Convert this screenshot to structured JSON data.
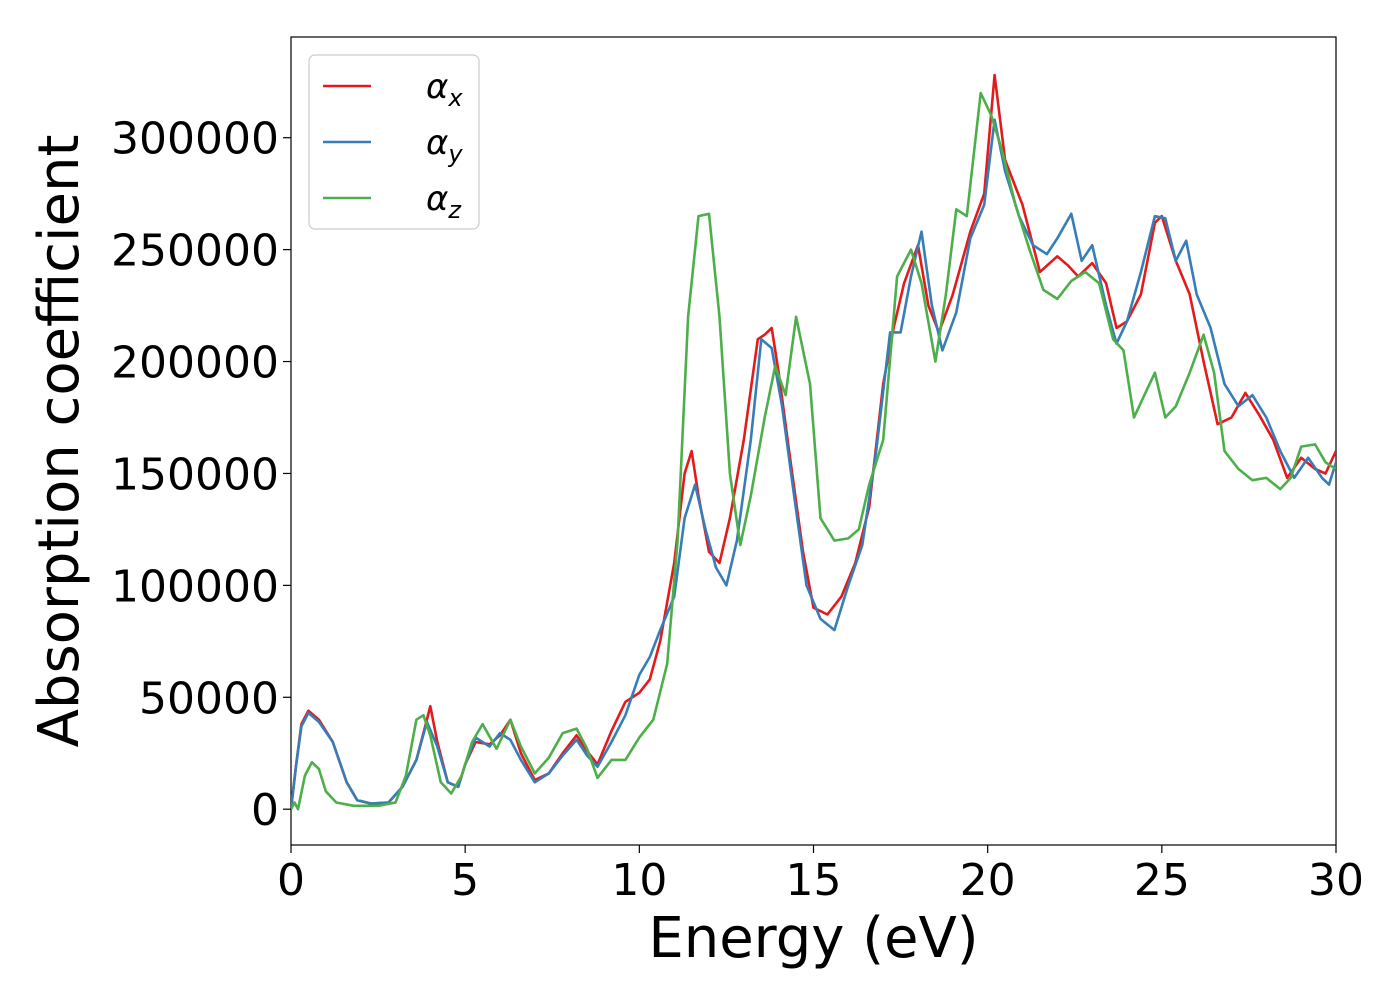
{
  "chart_data": {
    "type": "line",
    "title": "",
    "xlabel": "Energy (eV)",
    "ylabel": "Absorption coefficient",
    "xlim": [
      0,
      30
    ],
    "ylim": [
      -16000,
      345000
    ],
    "xticks": [
      0,
      5,
      10,
      15,
      20,
      25,
      30
    ],
    "xtick_labels": [
      "0",
      "5",
      "10",
      "15",
      "20",
      "25",
      "30"
    ],
    "yticks": [
      0,
      50000,
      100000,
      150000,
      200000,
      250000,
      300000
    ],
    "ytick_labels": [
      "0",
      "50000",
      "100000",
      "150000",
      "200000",
      "250000",
      "300000"
    ],
    "grid": false,
    "legend_position": "top-left",
    "series": [
      {
        "name": "α",
        "subscript": "x",
        "color": "#e41a1c",
        "points": [
          [
            0,
            0
          ],
          [
            0.15,
            20000
          ],
          [
            0.3,
            38000
          ],
          [
            0.5,
            44000
          ],
          [
            0.8,
            40000
          ],
          [
            1.2,
            30000
          ],
          [
            1.6,
            12000
          ],
          [
            1.9,
            4000
          ],
          [
            2.3,
            2500
          ],
          [
            2.8,
            3000
          ],
          [
            3.2,
            10000
          ],
          [
            3.6,
            22000
          ],
          [
            3.9,
            40000
          ],
          [
            4.0,
            46000
          ],
          [
            4.2,
            30000
          ],
          [
            4.5,
            12000
          ],
          [
            4.8,
            10000
          ],
          [
            5.0,
            20000
          ],
          [
            5.3,
            30000
          ],
          [
            5.7,
            29000
          ],
          [
            6.0,
            33000
          ],
          [
            6.3,
            40000
          ],
          [
            6.6,
            25000
          ],
          [
            7.0,
            13000
          ],
          [
            7.4,
            16000
          ],
          [
            7.8,
            25000
          ],
          [
            8.2,
            33000
          ],
          [
            8.5,
            26000
          ],
          [
            8.8,
            20000
          ],
          [
            9.2,
            35000
          ],
          [
            9.6,
            48000
          ],
          [
            10.0,
            52000
          ],
          [
            10.3,
            58000
          ],
          [
            10.6,
            75000
          ],
          [
            11.0,
            110000
          ],
          [
            11.3,
            150000
          ],
          [
            11.5,
            160000
          ],
          [
            11.7,
            140000
          ],
          [
            12.0,
            115000
          ],
          [
            12.3,
            110000
          ],
          [
            12.6,
            130000
          ],
          [
            13.0,
            165000
          ],
          [
            13.4,
            210000
          ],
          [
            13.6,
            212000
          ],
          [
            13.8,
            215000
          ],
          [
            14.0,
            195000
          ],
          [
            14.3,
            160000
          ],
          [
            14.7,
            115000
          ],
          [
            15.0,
            90000
          ],
          [
            15.4,
            87000
          ],
          [
            15.8,
            95000
          ],
          [
            16.2,
            110000
          ],
          [
            16.6,
            135000
          ],
          [
            17.0,
            190000
          ],
          [
            17.3,
            215000
          ],
          [
            17.6,
            235000
          ],
          [
            18.0,
            252000
          ],
          [
            18.3,
            225000
          ],
          [
            18.6,
            213000
          ],
          [
            19.0,
            230000
          ],
          [
            19.5,
            258000
          ],
          [
            19.9,
            275000
          ],
          [
            20.2,
            328000
          ],
          [
            20.5,
            290000
          ],
          [
            21.0,
            270000
          ],
          [
            21.5,
            240000
          ],
          [
            22.0,
            247000
          ],
          [
            22.3,
            243000
          ],
          [
            22.6,
            238000
          ],
          [
            23.0,
            244000
          ],
          [
            23.4,
            235000
          ],
          [
            23.7,
            215000
          ],
          [
            24.0,
            218000
          ],
          [
            24.4,
            230000
          ],
          [
            24.8,
            262000
          ],
          [
            25.0,
            265000
          ],
          [
            25.4,
            245000
          ],
          [
            25.8,
            230000
          ],
          [
            26.2,
            200000
          ],
          [
            26.6,
            172000
          ],
          [
            27.0,
            175000
          ],
          [
            27.4,
            186000
          ],
          [
            27.8,
            176000
          ],
          [
            28.2,
            165000
          ],
          [
            28.6,
            148000
          ],
          [
            29.0,
            157000
          ],
          [
            29.4,
            152000
          ],
          [
            29.7,
            150000
          ],
          [
            30.0,
            160000
          ]
        ]
      },
      {
        "name": "α",
        "subscript": "y",
        "color": "#377eb8",
        "points": [
          [
            0,
            0
          ],
          [
            0.15,
            20000
          ],
          [
            0.3,
            37000
          ],
          [
            0.5,
            43000
          ],
          [
            0.8,
            39000
          ],
          [
            1.2,
            30000
          ],
          [
            1.6,
            12000
          ],
          [
            1.9,
            4000
          ],
          [
            2.3,
            2500
          ],
          [
            2.8,
            3000
          ],
          [
            3.2,
            10000
          ],
          [
            3.6,
            22000
          ],
          [
            3.9,
            39000
          ],
          [
            4.2,
            28000
          ],
          [
            4.5,
            12000
          ],
          [
            4.8,
            10000
          ],
          [
            5.0,
            20000
          ],
          [
            5.3,
            32000
          ],
          [
            5.7,
            28000
          ],
          [
            6.0,
            34000
          ],
          [
            6.3,
            31000
          ],
          [
            6.6,
            22000
          ],
          [
            7.0,
            12000
          ],
          [
            7.4,
            16000
          ],
          [
            7.8,
            24000
          ],
          [
            8.2,
            31000
          ],
          [
            8.5,
            24000
          ],
          [
            8.8,
            19000
          ],
          [
            9.2,
            30000
          ],
          [
            9.6,
            42000
          ],
          [
            10.0,
            60000
          ],
          [
            10.3,
            68000
          ],
          [
            10.6,
            80000
          ],
          [
            11.0,
            95000
          ],
          [
            11.3,
            130000
          ],
          [
            11.6,
            145000
          ],
          [
            11.9,
            125000
          ],
          [
            12.2,
            108000
          ],
          [
            12.5,
            100000
          ],
          [
            12.8,
            120000
          ],
          [
            13.2,
            165000
          ],
          [
            13.5,
            210000
          ],
          [
            13.8,
            206000
          ],
          [
            14.1,
            180000
          ],
          [
            14.4,
            145000
          ],
          [
            14.8,
            100000
          ],
          [
            15.2,
            85000
          ],
          [
            15.6,
            80000
          ],
          [
            16.0,
            100000
          ],
          [
            16.4,
            118000
          ],
          [
            16.8,
            160000
          ],
          [
            17.2,
            213000
          ],
          [
            17.5,
            213000
          ],
          [
            17.8,
            238000
          ],
          [
            18.1,
            258000
          ],
          [
            18.4,
            225000
          ],
          [
            18.7,
            205000
          ],
          [
            19.1,
            222000
          ],
          [
            19.5,
            255000
          ],
          [
            19.9,
            270000
          ],
          [
            20.2,
            308000
          ],
          [
            20.5,
            285000
          ],
          [
            20.9,
            265000
          ],
          [
            21.3,
            252000
          ],
          [
            21.7,
            248000
          ],
          [
            22.0,
            255000
          ],
          [
            22.4,
            266000
          ],
          [
            22.7,
            245000
          ],
          [
            23.0,
            252000
          ],
          [
            23.4,
            225000
          ],
          [
            23.7,
            208000
          ],
          [
            24.0,
            218000
          ],
          [
            24.4,
            240000
          ],
          [
            24.8,
            265000
          ],
          [
            25.1,
            264000
          ],
          [
            25.4,
            245000
          ],
          [
            25.7,
            254000
          ],
          [
            26.0,
            230000
          ],
          [
            26.4,
            215000
          ],
          [
            26.8,
            190000
          ],
          [
            27.2,
            180000
          ],
          [
            27.6,
            185000
          ],
          [
            28.0,
            175000
          ],
          [
            28.4,
            160000
          ],
          [
            28.8,
            148000
          ],
          [
            29.2,
            157000
          ],
          [
            29.6,
            148000
          ],
          [
            29.8,
            145000
          ],
          [
            30.0,
            155000
          ]
        ]
      },
      {
        "name": "α",
        "subscript": "z",
        "color": "#4daf4a",
        "points": [
          [
            0,
            0
          ],
          [
            0.1,
            3000
          ],
          [
            0.2,
            0
          ],
          [
            0.4,
            15000
          ],
          [
            0.6,
            21000
          ],
          [
            0.8,
            18000
          ],
          [
            1.0,
            8000
          ],
          [
            1.3,
            3000
          ],
          [
            1.8,
            1500
          ],
          [
            2.5,
            1500
          ],
          [
            3.0,
            3000
          ],
          [
            3.3,
            15000
          ],
          [
            3.6,
            40000
          ],
          [
            3.8,
            42000
          ],
          [
            4.0,
            33000
          ],
          [
            4.3,
            12000
          ],
          [
            4.6,
            7000
          ],
          [
            4.9,
            15000
          ],
          [
            5.2,
            30000
          ],
          [
            5.5,
            38000
          ],
          [
            5.9,
            27000
          ],
          [
            6.3,
            40000
          ],
          [
            6.6,
            28000
          ],
          [
            7.0,
            16000
          ],
          [
            7.4,
            23000
          ],
          [
            7.8,
            34000
          ],
          [
            8.2,
            36000
          ],
          [
            8.5,
            27000
          ],
          [
            8.8,
            14000
          ],
          [
            9.2,
            22000
          ],
          [
            9.6,
            22000
          ],
          [
            10.0,
            32000
          ],
          [
            10.4,
            40000
          ],
          [
            10.8,
            65000
          ],
          [
            11.1,
            120000
          ],
          [
            11.4,
            220000
          ],
          [
            11.7,
            265000
          ],
          [
            12.0,
            266000
          ],
          [
            12.3,
            220000
          ],
          [
            12.6,
            150000
          ],
          [
            12.9,
            118000
          ],
          [
            13.2,
            140000
          ],
          [
            13.6,
            175000
          ],
          [
            13.9,
            198000
          ],
          [
            14.2,
            185000
          ],
          [
            14.5,
            220000
          ],
          [
            14.9,
            190000
          ],
          [
            15.2,
            130000
          ],
          [
            15.6,
            120000
          ],
          [
            16.0,
            121000
          ],
          [
            16.3,
            125000
          ],
          [
            16.6,
            145000
          ],
          [
            17.0,
            165000
          ],
          [
            17.4,
            238000
          ],
          [
            17.8,
            250000
          ],
          [
            18.1,
            235000
          ],
          [
            18.5,
            200000
          ],
          [
            18.8,
            230000
          ],
          [
            19.1,
            268000
          ],
          [
            19.4,
            265000
          ],
          [
            19.8,
            320000
          ],
          [
            20.1,
            310000
          ],
          [
            20.4,
            295000
          ],
          [
            20.8,
            270000
          ],
          [
            21.2,
            250000
          ],
          [
            21.6,
            232000
          ],
          [
            22.0,
            228000
          ],
          [
            22.4,
            236000
          ],
          [
            22.8,
            240000
          ],
          [
            23.2,
            235000
          ],
          [
            23.6,
            210000
          ],
          [
            23.9,
            205000
          ],
          [
            24.2,
            175000
          ],
          [
            24.5,
            185000
          ],
          [
            24.8,
            195000
          ],
          [
            25.1,
            175000
          ],
          [
            25.4,
            180000
          ],
          [
            25.8,
            195000
          ],
          [
            26.2,
            212000
          ],
          [
            26.5,
            195000
          ],
          [
            26.8,
            160000
          ],
          [
            27.2,
            152000
          ],
          [
            27.6,
            147000
          ],
          [
            28.0,
            148000
          ],
          [
            28.4,
            143000
          ],
          [
            28.7,
            148000
          ],
          [
            29.0,
            162000
          ],
          [
            29.4,
            163000
          ],
          [
            29.7,
            155000
          ],
          [
            30.0,
            152000
          ]
        ]
      }
    ]
  }
}
